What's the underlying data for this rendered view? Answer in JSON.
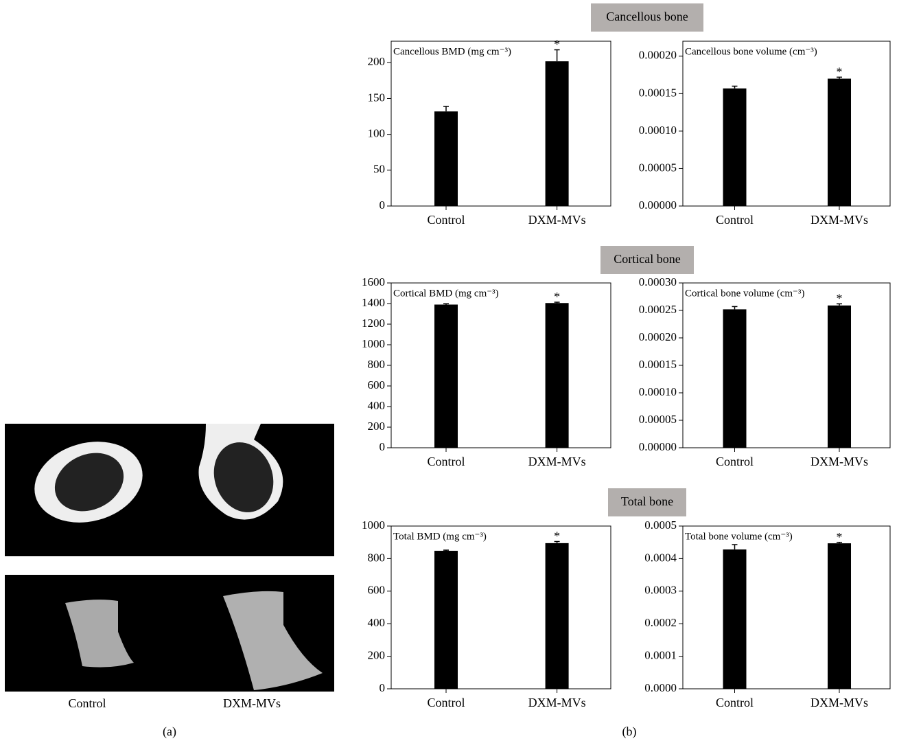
{
  "sections": [
    "Cancellous bone",
    "Cortical bone",
    "Total bone"
  ],
  "panel_a": {
    "captions": [
      "Control",
      "DXM-MVs"
    ],
    "label": "(a)"
  },
  "panel_b": {
    "label": "(b)"
  },
  "chart_data": [
    {
      "type": "bar",
      "ylabel": "Cancellous BMD (mg cm⁻³)",
      "categories": [
        "Control",
        "DXM-MVs"
      ],
      "values": [
        132,
        202
      ],
      "errors": [
        7,
        16
      ],
      "significance": [
        null,
        "*"
      ],
      "color": "#000000",
      "ylim": [
        0,
        230
      ],
      "yticks": [
        0,
        50,
        100,
        150,
        200
      ]
    },
    {
      "type": "bar",
      "ylabel": "Cancellous bone volume (cm⁻³)",
      "categories": [
        "Control",
        "DXM-MVs"
      ],
      "values": [
        0.000157,
        0.00017
      ],
      "errors": [
        3e-06,
        2e-06
      ],
      "significance": [
        null,
        "*"
      ],
      "color": "#000000",
      "ylim": [
        0,
        0.00022
      ],
      "yticks": [
        {
          "value": 0,
          "label": "0.00000"
        },
        {
          "value": 5e-05,
          "label": "0.00005"
        },
        {
          "value": 0.0001,
          "label": "0.00010"
        },
        {
          "value": 0.00015,
          "label": "0.00015"
        },
        {
          "value": 0.0002,
          "label": "0.00020"
        }
      ]
    },
    {
      "type": "bar",
      "ylabel": "Cortical BMD (mg cm⁻³)",
      "categories": [
        "Control",
        "DXM-MVs"
      ],
      "values": [
        1390,
        1405
      ],
      "errors": [
        8,
        8
      ],
      "significance": [
        null,
        "*"
      ],
      "color": "#000000",
      "ylim": [
        0,
        1600
      ],
      "yticks": [
        0,
        200,
        400,
        600,
        800,
        1000,
        1200,
        1400,
        1600
      ]
    },
    {
      "type": "bar",
      "ylabel": "Cortical bone volume (cm⁻³)",
      "categories": [
        "Control",
        "DXM-MVs"
      ],
      "values": [
        0.000252,
        0.000259
      ],
      "errors": [
        5e-06,
        3e-06
      ],
      "significance": [
        null,
        "*"
      ],
      "color": "#000000",
      "ylim": [
        0,
        0.0003
      ],
      "yticks": [
        {
          "value": 0,
          "label": "0.00000"
        },
        {
          "value": 5e-05,
          "label": "0.00005"
        },
        {
          "value": 0.0001,
          "label": "0.00010"
        },
        {
          "value": 0.00015,
          "label": "0.00015"
        },
        {
          "value": 0.0002,
          "label": "0.00020"
        },
        {
          "value": 0.00025,
          "label": "0.00025"
        },
        {
          "value": 0.0003,
          "label": "0.00030"
        }
      ]
    },
    {
      "type": "bar",
      "ylabel": "Total BMD (mg cm⁻³)",
      "categories": [
        "Control",
        "DXM-MVs"
      ],
      "values": [
        848,
        895
      ],
      "errors": [
        4,
        10
      ],
      "significance": [
        null,
        "*"
      ],
      "color": "#000000",
      "ylim": [
        0,
        1000
      ],
      "yticks": [
        0,
        200,
        400,
        600,
        800,
        1000
      ]
    },
    {
      "type": "bar",
      "ylabel": "Total bone volume (cm⁻³)",
      "categories": [
        "Control",
        "DXM-MVs"
      ],
      "values": [
        0.000428,
        0.000447
      ],
      "errors": [
        1.5e-05,
        3e-06
      ],
      "significance": [
        null,
        "*"
      ],
      "color": "#000000",
      "ylim": [
        0,
        0.0005
      ],
      "yticks": [
        {
          "value": 0,
          "label": "0.0000"
        },
        {
          "value": 0.0001,
          "label": "0.0001"
        },
        {
          "value": 0.0002,
          "label": "0.0002"
        },
        {
          "value": 0.0003,
          "label": "0.0003"
        },
        {
          "value": 0.0004,
          "label": "0.0004"
        },
        {
          "value": 0.0005,
          "label": "0.0005"
        }
      ]
    }
  ]
}
